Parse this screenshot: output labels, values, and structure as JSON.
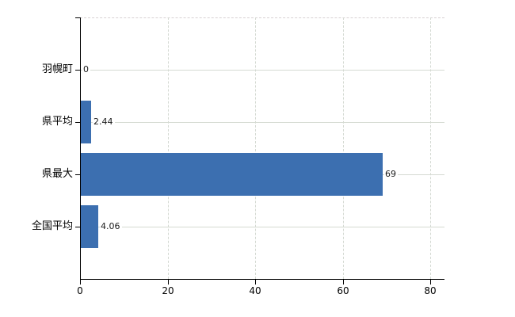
{
  "chart_data": {
    "type": "bar",
    "orientation": "horizontal",
    "title": "",
    "xlabel": "",
    "ylabel": "",
    "categories": [
      "羽幌町",
      "県平均",
      "県最大",
      "全国平均"
    ],
    "values": [
      0,
      2.44,
      69,
      4.06
    ],
    "value_labels": [
      "0",
      "2.44",
      "69",
      "4.06"
    ],
    "x_ticks": [
      0,
      20,
      40,
      60,
      80
    ],
    "x_tick_labels": [
      "0",
      "20",
      "40",
      "60",
      "80"
    ],
    "xlim": [
      0,
      83.2
    ],
    "grid": true,
    "legend": "none",
    "bar_color": "#3c6fb0",
    "gridline_color": "#d5dad2",
    "axis_color": "#000000",
    "label_color": "#000000",
    "background_color": "#ffffff"
  }
}
